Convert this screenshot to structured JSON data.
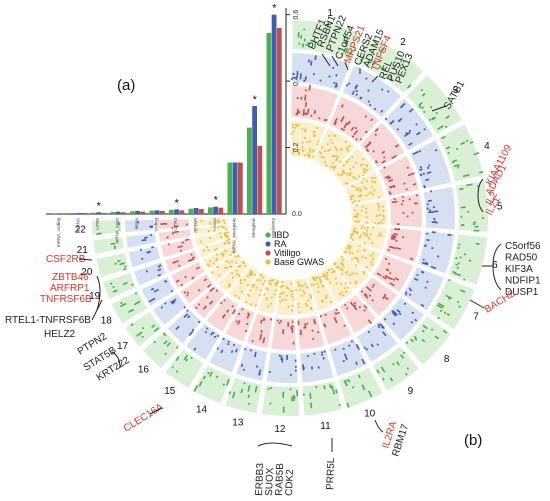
{
  "panel_labels": {
    "a": "(a)",
    "b": "(b)"
  },
  "colors": {
    "IBD": "#4caf50",
    "RA": "#3f5fb5",
    "Vitiligo": "#c0504d",
    "Base GWAS": "#e3c04a",
    "IBD_ring": "#d9efd6",
    "RA_ring": "#d6e0f0",
    "Vitiligo_ring": "#f6d8d8",
    "Base_ring": "#fbefcc",
    "highlight_text": "#d9342b",
    "normal_text": "#222222"
  },
  "chart_data": [
    {
      "type": "bar",
      "panel": "(a)",
      "orientation": "vertical",
      "categories": [
        "mRNA_coding",
        "ncRNA",
        "UTR5",
        "mRNA_exon",
        "intron",
        "coding",
        "UTR3",
        "nonsyn",
        "exon",
        "mRNA_intergenic",
        "intergenic",
        "regulatory"
      ],
      "series": [
        {
          "name": "IBD",
          "values": [
            0.002,
            0.003,
            0.004,
            0.006,
            0.008,
            0.01,
            0.012,
            0.016,
            0.02,
            0.155,
            0.26,
            0.545
          ]
        },
        {
          "name": "RA",
          "values": [
            0.002,
            0.003,
            0.005,
            0.007,
            0.009,
            0.011,
            0.014,
            0.018,
            0.022,
            0.155,
            0.325,
            0.6
          ]
        },
        {
          "name": "Vitiligo",
          "values": [
            0.002,
            0.003,
            0.003,
            0.005,
            0.007,
            0.009,
            0.011,
            0.015,
            0.019,
            0.155,
            0.205,
            0.56
          ]
        }
      ],
      "significant": [
        false,
        false,
        true,
        false,
        false,
        false,
        true,
        false,
        true,
        false,
        true,
        true
      ],
      "yticks": [
        "0.2",
        "0.4",
        "0.6"
      ],
      "ylim": [
        0,
        0.62
      ],
      "legend_position": "bottom-right",
      "grid": false
    },
    {
      "type": "circular",
      "panel": "(b)",
      "rings": [
        "IBD",
        "RA",
        "Vitiligo",
        "Base GWAS"
      ],
      "chromosomes": [
        "1",
        "2",
        "3",
        "4",
        "5",
        "6",
        "7",
        "8",
        "9",
        "10",
        "11",
        "12",
        "13",
        "14",
        "15",
        "16",
        "17",
        "18",
        "19",
        "20",
        "21",
        "22"
      ],
      "legend": [
        "IBD",
        "RA",
        "Vitiligo",
        "Base GWAS"
      ]
    }
  ],
  "gene_labels": {
    "chr1": [
      "PHTF1",
      "RSBN1",
      "PTPN22",
      "C1orf54",
      "MRPS21",
      "CERS2",
      "ADAM15",
      "TNFSF4",
      "REL",
      "PUS10",
      "PEX13"
    ],
    "chr2": [
      "SATB1"
    ],
    "chr4": [
      "KIAA1109",
      "ADAD1",
      "IL2",
      "IL21"
    ],
    "chr5": [
      "C5orf56",
      "RAD50",
      "KIF3A",
      "NDFIP1",
      "DUSP1"
    ],
    "chr6": [
      "BACH2"
    ],
    "chr10": [
      "IL2RA",
      "RBM17"
    ],
    "chr11": [
      "PRR5L"
    ],
    "chr12": [
      "ERBB3",
      "SUOX",
      "RAB5B",
      "CDK2"
    ],
    "chr15": [
      "CLEC16A"
    ],
    "chr16": [
      "PTPN2",
      "STAT5B",
      "KRT222"
    ],
    "chr20": [
      "ZBTB46",
      "ARFRP1",
      "TNFRSF6B",
      "RTEL1-TNFRSF6B",
      "HELZ2"
    ],
    "chr22": [
      "CSF2RB"
    ]
  },
  "highlighted_genes": [
    "MRPS21",
    "TNFSF4",
    "KIAA1109",
    "ADAD1",
    "IL2",
    "IL21",
    "BACH2",
    "IL2RA",
    "CLEC16A",
    "ZBTB46",
    "ARFRP1",
    "TNFRSF6B",
    "CSF2RB"
  ]
}
